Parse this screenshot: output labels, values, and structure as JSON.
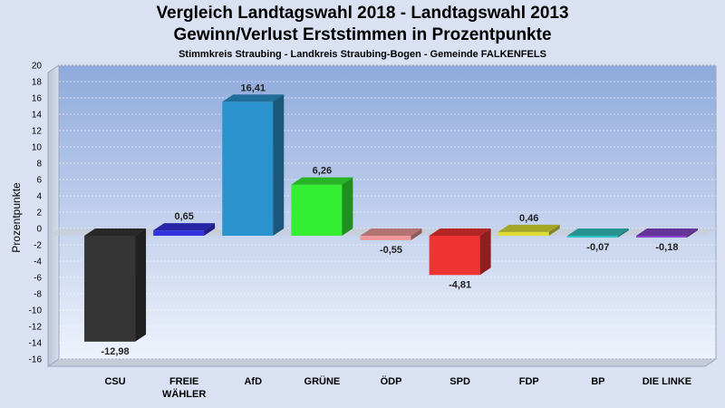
{
  "header": {
    "title_line1": "Vergleich Landtagswahl 2018 - Landtagswahl 2013",
    "title_line2": "Gewinn/Verlust Erststimmen in Prozentpunkte",
    "subtitle": "Stimmkreis Straubing - Landkreis Straubing-Bogen - Gemeinde FALKENFELS"
  },
  "chart_data": {
    "type": "bar",
    "title": "Vergleich Landtagswahl 2018 - Landtagswahl 2013 / Gewinn/Verlust Erststimmen in Prozentpunkte",
    "ylabel": "Prozentpunkte",
    "xlabel": "",
    "ylim": [
      -16,
      20
    ],
    "yticks": [
      "20",
      "18",
      "16",
      "14",
      "12",
      "10",
      "8",
      "6",
      "4",
      "2",
      "0",
      "-2",
      "-4",
      "-6",
      "-8",
      "-10",
      "-12",
      "-14",
      "-16"
    ],
    "grid": true,
    "categories": [
      {
        "lines": [
          "CSU"
        ],
        "value": -12.98,
        "label": "-12,98",
        "color": "#353535"
      },
      {
        "lines": [
          "FREIE",
          "WÄHLER"
        ],
        "value": 0.65,
        "label": "0,65",
        "color": "#3333dd"
      },
      {
        "lines": [
          "AfD"
        ],
        "value": 16.41,
        "label": "16,41",
        "color": "#2a92cc"
      },
      {
        "lines": [
          "GRÜNE"
        ],
        "value": 6.26,
        "label": "6,26",
        "color": "#33ee33"
      },
      {
        "lines": [
          "ÖDP"
        ],
        "value": -0.55,
        "label": "-0,55",
        "color": "#ee9999"
      },
      {
        "lines": [
          "SPD"
        ],
        "value": -4.81,
        "label": "-4,81",
        "color": "#ee3333"
      },
      {
        "lines": [
          "FDP"
        ],
        "value": 0.46,
        "label": "0,46",
        "color": "#dddd33"
      },
      {
        "lines": [
          "BP"
        ],
        "value": -0.07,
        "label": "-0,07",
        "color": "#33c4c4"
      },
      {
        "lines": [
          "DIE LINKE"
        ],
        "value": -0.18,
        "label": "-0,18",
        "color": "#8844cc"
      }
    ]
  }
}
